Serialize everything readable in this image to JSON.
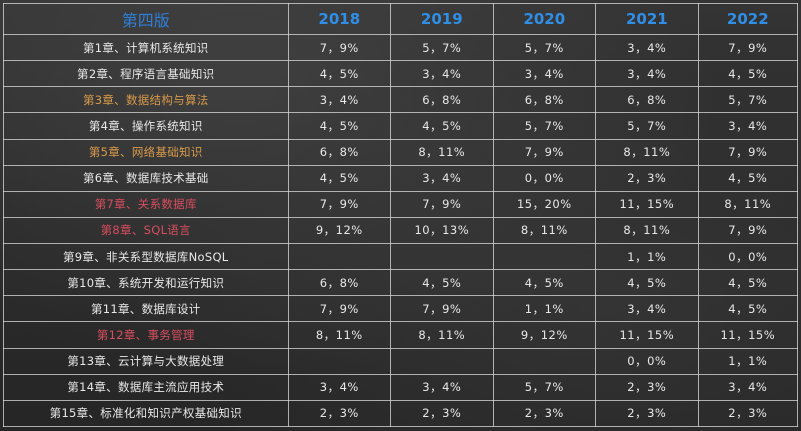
{
  "header": {
    "edition": "第四版",
    "years": [
      "2018",
      "2019",
      "2020",
      "2021",
      "2022"
    ]
  },
  "colors": {
    "header_text": "#2f8ee6",
    "highlight_orange": "#d89a4a",
    "highlight_red": "#d94d5e",
    "normal_text": "#e8e8e8"
  },
  "rows": [
    {
      "chapter": "第1章、计算机系统知识",
      "highlight": "none",
      "values": [
        "7，9%",
        "5，7%",
        "5，7%",
        "3，4%",
        "7，9%"
      ]
    },
    {
      "chapter": "第2章、程序语言基础知识",
      "highlight": "none",
      "values": [
        "4，5%",
        "3，4%",
        "3，4%",
        "3，4%",
        "4，5%"
      ]
    },
    {
      "chapter": "第3章、数据结构与算法",
      "highlight": "orange",
      "values": [
        "3，4%",
        "6，8%",
        "6，8%",
        "6，8%",
        "5，7%"
      ]
    },
    {
      "chapter": "第4章、操作系统知识",
      "highlight": "none",
      "values": [
        "4，5%",
        "4，5%",
        "5，7%",
        "5，7%",
        "3，4%"
      ]
    },
    {
      "chapter": "第5章、网络基础知识",
      "highlight": "orange",
      "values": [
        "6，8%",
        "8，11%",
        "7，9%",
        "8，11%",
        "7，9%"
      ]
    },
    {
      "chapter": "第6章、数据库技术基础",
      "highlight": "none",
      "values": [
        "4，5%",
        "3，4%",
        "0，0%",
        "2，3%",
        "4，5%"
      ]
    },
    {
      "chapter": "第7章、关系数据库",
      "highlight": "red",
      "values": [
        "7，9%",
        "7，9%",
        "15，20%",
        "11，15%",
        "8，11%"
      ]
    },
    {
      "chapter": "第8章、SQL语言",
      "highlight": "red",
      "values": [
        "9，12%",
        "10，13%",
        "8，11%",
        "8，11%",
        "7，9%"
      ]
    },
    {
      "chapter": "第9章、非关系型数据库NoSQL",
      "highlight": "none",
      "values": [
        "",
        "",
        "",
        "1，1%",
        "0，0%"
      ]
    },
    {
      "chapter": "第10章、系统开发和运行知识",
      "highlight": "none",
      "values": [
        "6，8%",
        "4，5%",
        "4，5%",
        "4，5%",
        "4，5%"
      ]
    },
    {
      "chapter": "第11章、数据库设计",
      "highlight": "none",
      "values": [
        "7，9%",
        "7，9%",
        "1，1%",
        "3，4%",
        "4，5%"
      ]
    },
    {
      "chapter": "第12章、事务管理",
      "highlight": "red",
      "values": [
        "8，11%",
        "8，11%",
        "9，12%",
        "11，15%",
        "11，15%"
      ]
    },
    {
      "chapter": "第13章、云计算与大数据处理",
      "highlight": "none",
      "values": [
        "",
        "",
        "",
        "0，0%",
        "1，1%"
      ]
    },
    {
      "chapter": "第14章、数据库主流应用技术",
      "highlight": "none",
      "values": [
        "3，4%",
        "3，4%",
        "5，7%",
        "2，3%",
        "3，4%"
      ]
    },
    {
      "chapter": "第15章、标准化和知识产权基础知识",
      "highlight": "none",
      "values": [
        "2，3%",
        "2，3%",
        "2，3%",
        "2，3%",
        "2，3%"
      ]
    }
  ]
}
